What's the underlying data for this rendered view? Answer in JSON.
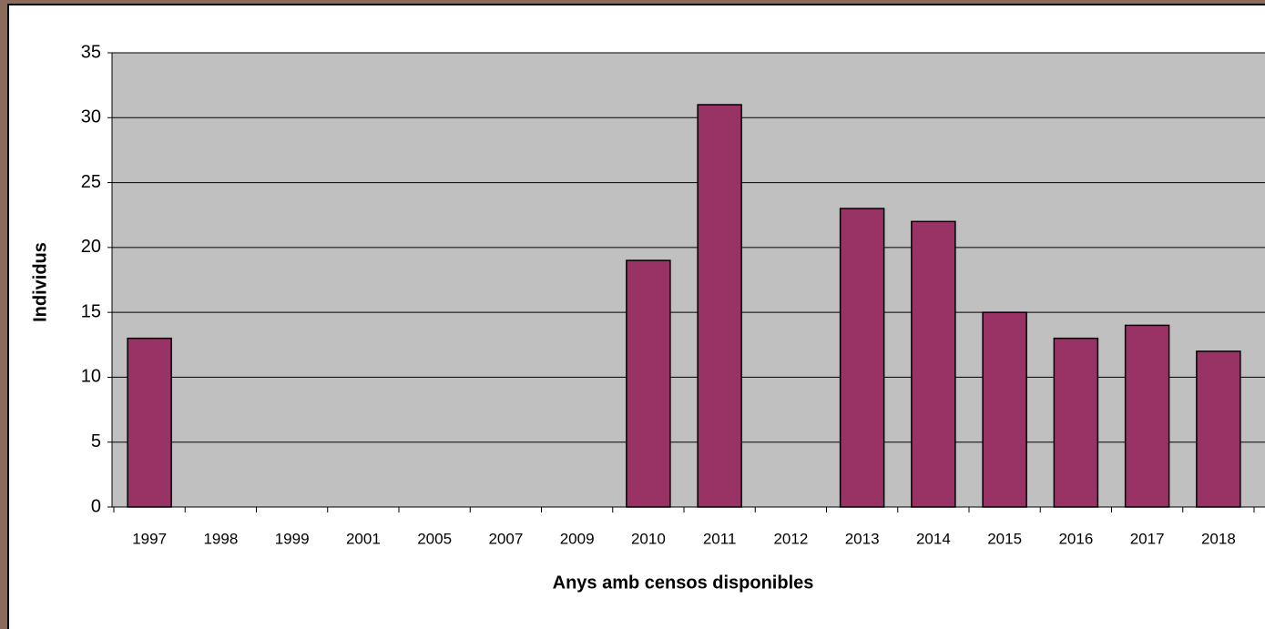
{
  "chart_data": {
    "type": "bar",
    "x_label": "Anys amb censos disponibles",
    "y_label": "Individus",
    "categories": [
      "1997",
      "1998",
      "1999",
      "2001",
      "2005",
      "2007",
      "2009",
      "2010",
      "2011",
      "2012",
      "2013",
      "2014",
      "2015",
      "2016",
      "2017",
      "2018"
    ],
    "values": [
      13,
      0,
      0,
      0,
      0,
      0,
      0,
      19,
      31,
      0,
      23,
      22,
      15,
      13,
      14,
      12
    ],
    "color": "#993366",
    "ylim": [
      0,
      35
    ],
    "yticks": [
      0,
      5,
      10,
      15,
      20,
      25,
      30,
      35
    ],
    "grid": true
  }
}
